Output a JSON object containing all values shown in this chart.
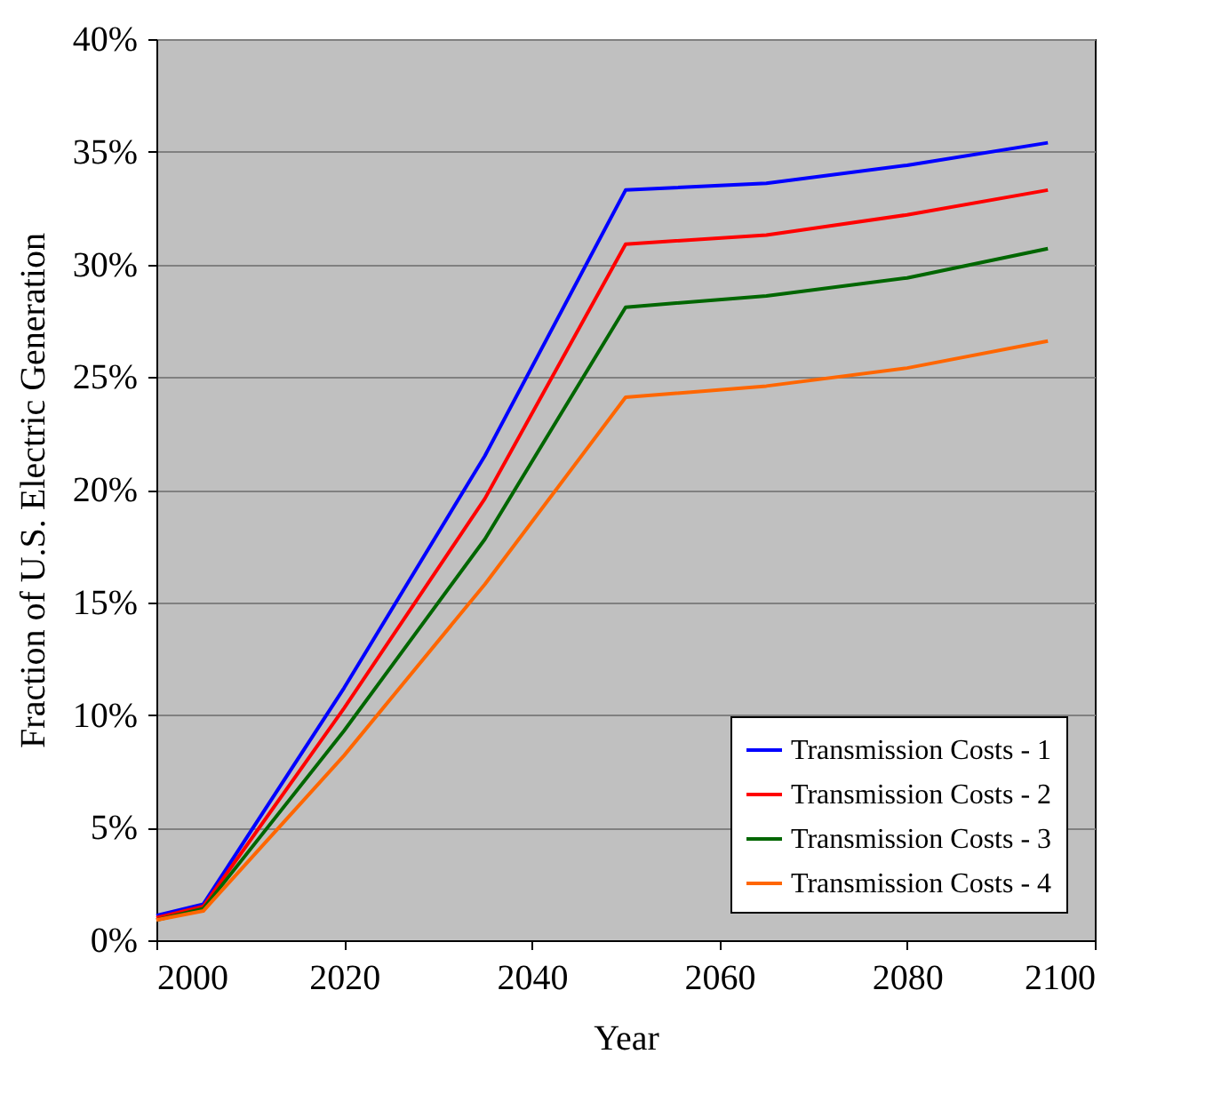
{
  "chart_data": {
    "type": "line",
    "xlabel": "Year",
    "ylabel": "Fraction of U.S. Electric Generation",
    "x": [
      2000,
      2005,
      2020,
      2035,
      2050,
      2065,
      2080,
      2095
    ],
    "series": [
      {
        "name": "Transmission Costs - 1",
        "color": "#0000ff",
        "values": [
          1.1,
          1.6,
          11.2,
          21.5,
          33.3,
          33.6,
          34.4,
          35.4
        ]
      },
      {
        "name": "Transmission Costs - 2",
        "color": "#ff0000",
        "values": [
          1.0,
          1.5,
          10.3,
          19.6,
          30.9,
          31.3,
          32.2,
          33.3
        ]
      },
      {
        "name": "Transmission Costs - 3",
        "color": "#006600",
        "values": [
          0.9,
          1.4,
          9.3,
          17.8,
          28.1,
          28.6,
          29.4,
          30.7
        ]
      },
      {
        "name": "Transmission Costs - 4",
        "color": "#ff6600",
        "values": [
          0.9,
          1.3,
          8.2,
          15.8,
          24.1,
          24.6,
          25.4,
          26.6
        ]
      }
    ],
    "xlim": [
      2000,
      2100
    ],
    "xticks": [
      2000,
      2020,
      2040,
      2060,
      2080,
      2100
    ],
    "ylim": [
      0,
      40
    ],
    "yticks": [
      {
        "value": 0,
        "label": "0%"
      },
      {
        "value": 5,
        "label": "5%"
      },
      {
        "value": 10,
        "label": "10%"
      },
      {
        "value": 15,
        "label": "15%"
      },
      {
        "value": 20,
        "label": "20%"
      },
      {
        "value": 25,
        "label": "25%"
      },
      {
        "value": 30,
        "label": "30%"
      },
      {
        "value": 35,
        "label": "35%"
      },
      {
        "value": 40,
        "label": "40%"
      }
    ],
    "grid": "y",
    "legend": "bottom right",
    "marker": "none",
    "line_style": "solid"
  }
}
